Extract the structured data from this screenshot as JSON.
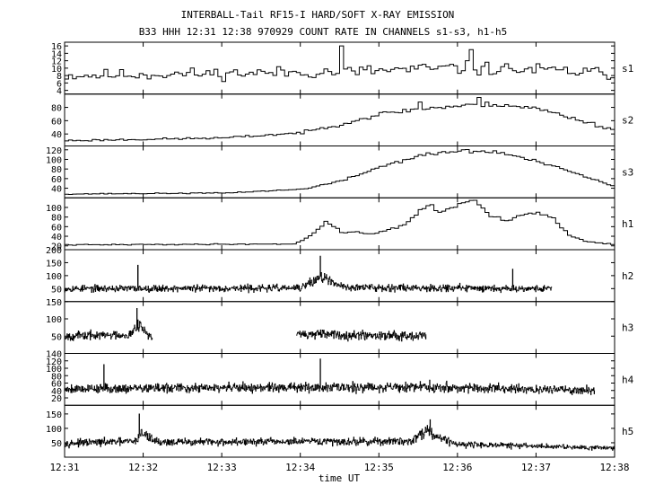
{
  "chart_data": {
    "type": "line",
    "title": "INTERBALL-Tail RF15-I HARD/SOFT X-RAY EMISSION",
    "subtitle": "B33 HHH 12:31 12:38 970929  COUNT RATE IN CHANNELS s1-s3, h1-h5",
    "xlabel": "time UT",
    "x_ticks": [
      "12:31",
      "12:32",
      "12:33",
      "12:34",
      "12:35",
      "12:36",
      "12:37",
      "12:38"
    ],
    "x_range_minutes": [
      0,
      7
    ],
    "grid": false,
    "panels": [
      {
        "name": "s1",
        "ylim": [
          3,
          17
        ],
        "yticks": [
          {
            "v": 4,
            "label": "4"
          },
          {
            "v": 6,
            "label": "6"
          },
          {
            "v": 8,
            "label": "8"
          },
          {
            "v": 10,
            "label": "10"
          },
          {
            "v": 12,
            "label": "12"
          },
          {
            "v": 14,
            "label": "14"
          },
          {
            "v": 16,
            "label": "16"
          }
        ],
        "step_min": 0.05,
        "t_start": 0,
        "t_end": 7,
        "profile": [
          [
            0,
            8
          ],
          [
            3.5,
            9
          ],
          [
            4.2,
            9.5
          ],
          [
            5.0,
            10
          ],
          [
            6.0,
            9.5
          ],
          [
            7.0,
            8.5
          ]
        ],
        "noise": 0.28,
        "seed": 11,
        "spikes": [
          [
            3.48,
            16
          ],
          [
            5.14,
            15
          ]
        ]
      },
      {
        "name": "s2",
        "ylim": [
          22,
          100
        ],
        "yticks": [
          {
            "v": 40,
            "label": "40"
          },
          {
            "v": 60,
            "label": "60"
          },
          {
            "v": 80,
            "label": "80"
          }
        ],
        "step_min": 0.05,
        "t_start": 0,
        "t_end": 7,
        "profile": [
          [
            0,
            30
          ],
          [
            2.0,
            34
          ],
          [
            3.0,
            42
          ],
          [
            3.5,
            55
          ],
          [
            4.0,
            70
          ],
          [
            4.5,
            78
          ],
          [
            5.0,
            82
          ],
          [
            5.5,
            85
          ],
          [
            6.0,
            78
          ],
          [
            6.5,
            62
          ],
          [
            7.0,
            45
          ]
        ],
        "noise": 0.07,
        "seed": 23,
        "spikes": [
          [
            5.25,
            95
          ],
          [
            4.5,
            88
          ]
        ]
      },
      {
        "name": "s3",
        "ylim": [
          20,
          128
        ],
        "yticks": [
          {
            "v": 40,
            "label": "40"
          },
          {
            "v": 60,
            "label": "60"
          },
          {
            "v": 80,
            "label": "80"
          },
          {
            "v": 100,
            "label": "100"
          },
          {
            "v": 120,
            "label": "120"
          }
        ],
        "step_min": 0.05,
        "t_start": 0,
        "t_end": 7,
        "profile": [
          [
            0,
            28
          ],
          [
            2.0,
            30
          ],
          [
            3.0,
            38
          ],
          [
            3.5,
            55
          ],
          [
            4.0,
            85
          ],
          [
            4.5,
            108
          ],
          [
            5.0,
            118
          ],
          [
            5.5,
            115
          ],
          [
            6.0,
            95
          ],
          [
            6.5,
            70
          ],
          [
            7.0,
            42
          ]
        ],
        "noise": 0.05,
        "seed": 37,
        "spikes": []
      },
      {
        "name": "h1",
        "ylim": [
          12,
          120
        ],
        "yticks": [
          {
            "v": 20,
            "label": "20"
          },
          {
            "v": 40,
            "label": "40"
          },
          {
            "v": 60,
            "label": "60"
          },
          {
            "v": 80,
            "label": "80"
          },
          {
            "v": 100,
            "label": "100"
          }
        ],
        "step_min": 0.05,
        "t_start": 0,
        "t_end": 7,
        "profile": [
          [
            0,
            22
          ],
          [
            2.9,
            24
          ],
          [
            3.1,
            40
          ],
          [
            3.3,
            70
          ],
          [
            3.5,
            50
          ],
          [
            3.9,
            45
          ],
          [
            4.1,
            55
          ],
          [
            4.3,
            62
          ],
          [
            4.6,
            108
          ],
          [
            4.75,
            90
          ],
          [
            5.0,
            108
          ],
          [
            5.2,
            112
          ],
          [
            5.4,
            82
          ],
          [
            5.6,
            72
          ],
          [
            5.9,
            90
          ],
          [
            6.0,
            92
          ],
          [
            6.2,
            75
          ],
          [
            6.4,
            42
          ],
          [
            6.6,
            30
          ],
          [
            7.0,
            22
          ]
        ],
        "noise": 0.07,
        "seed": 41,
        "spikes": []
      },
      {
        "name": "h2",
        "ylim": [
          0,
          200
        ],
        "yticks": [
          {
            "v": 50,
            "label": "50"
          },
          {
            "v": 100,
            "label": "100"
          },
          {
            "v": 150,
            "label": "150"
          },
          {
            "v": 200,
            "label": "200"
          }
        ],
        "step_min": 0.006,
        "t_start": 0,
        "t_end": 6.2,
        "profile": [
          [
            0,
            50
          ],
          [
            3.0,
            52
          ],
          [
            3.2,
            85
          ],
          [
            3.3,
            95
          ],
          [
            3.4,
            70
          ],
          [
            3.6,
            55
          ],
          [
            6.2,
            50
          ]
        ],
        "noise": 0.38,
        "seed": 53,
        "spikes": [
          [
            0.93,
            140
          ],
          [
            3.25,
            175
          ],
          [
            5.7,
            125
          ]
        ]
      },
      {
        "name": "h3",
        "ylim": [
          0,
          150
        ],
        "yticks": [
          {
            "v": 50,
            "label": "50"
          },
          {
            "v": 100,
            "label": "100"
          },
          {
            "v": 150,
            "label": "150"
          }
        ],
        "step_min": 0.006,
        "segments": [
          [
            0,
            1.12
          ],
          [
            2.95,
            4.6
          ]
        ],
        "profile": [
          [
            0,
            50
          ],
          [
            0.85,
            55
          ],
          [
            0.93,
            90
          ],
          [
            1.0,
            70
          ],
          [
            1.12,
            40
          ],
          [
            2.95,
            55
          ],
          [
            4.6,
            52
          ]
        ],
        "noise": 0.36,
        "seed": 67,
        "spikes": [
          [
            0.92,
            130
          ]
        ]
      },
      {
        "name": "h4",
        "ylim": [
          0,
          140
        ],
        "yticks": [
          {
            "v": 20,
            "label": "20"
          },
          {
            "v": 40,
            "label": "40"
          },
          {
            "v": 60,
            "label": "60"
          },
          {
            "v": 80,
            "label": "80"
          },
          {
            "v": 100,
            "label": "100"
          },
          {
            "v": 120,
            "label": "120"
          },
          {
            "v": 140,
            "label": "140"
          }
        ],
        "step_min": 0.006,
        "t_start": 0,
        "t_end": 6.75,
        "profile": [
          [
            0,
            45
          ],
          [
            3.0,
            48
          ],
          [
            4.5,
            50
          ],
          [
            6.75,
            40
          ]
        ],
        "noise": 0.4,
        "seed": 79,
        "spikes": [
          [
            3.25,
            125
          ],
          [
            0.5,
            110
          ]
        ]
      },
      {
        "name": "h5",
        "ylim": [
          0,
          180
        ],
        "yticks": [
          {
            "v": 50,
            "label": "50"
          },
          {
            "v": 100,
            "label": "100"
          },
          {
            "v": 150,
            "label": "150"
          }
        ],
        "step_min": 0.006,
        "t_start": 0,
        "t_end": 7,
        "profile": [
          [
            0,
            48
          ],
          [
            0.9,
            55
          ],
          [
            0.98,
            85
          ],
          [
            1.06,
            70
          ],
          [
            1.2,
            52
          ],
          [
            4.4,
            55
          ],
          [
            4.6,
            95
          ],
          [
            4.75,
            70
          ],
          [
            5.0,
            45
          ],
          [
            7.0,
            32
          ]
        ],
        "noise": 0.36,
        "seed": 97,
        "spikes": [
          [
            0.95,
            150
          ],
          [
            4.65,
            130
          ]
        ]
      }
    ]
  }
}
